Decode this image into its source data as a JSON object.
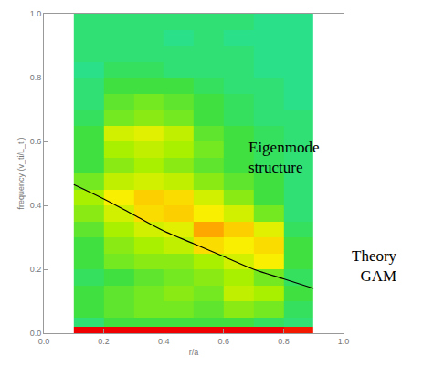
{
  "chart_data": {
    "type": "heatmap",
    "x_label": "r/a",
    "y_label": "frequency (v_ti/L_ti)",
    "xlim": [
      0,
      1
    ],
    "ylim": [
      0,
      1
    ],
    "xticks": [
      {
        "value": 0,
        "label": "0.0"
      },
      0.2,
      0.4,
      0.6,
      0.8,
      {
        "value": 1,
        "label": "1.0"
      }
    ],
    "yticks": [
      {
        "value": 0,
        "label": "0.0"
      },
      0.2,
      0.4,
      0.6,
      0.8,
      {
        "value": 1,
        "label": "1.0"
      }
    ],
    "x": [
      0.1,
      0.2,
      0.3,
      0.4,
      0.5,
      0.6,
      0.7,
      0.8,
      0.9
    ],
    "y": [
      0,
      0.02,
      0.05,
      0.1,
      0.15,
      0.2,
      0.25,
      0.3,
      0.35,
      0.4,
      0.45,
      0.5,
      0.55,
      0.6,
      0.65,
      0.7,
      0.75,
      0.8,
      0.85,
      0.9,
      0.95,
      1.0
    ],
    "z": [
      [
        1,
        1,
        1,
        1,
        1,
        1,
        1,
        0.98
      ],
      [
        0.5,
        0.55,
        0.55,
        0.55,
        0.55,
        0.55,
        0.52,
        0.5
      ],
      [
        0.55,
        0.58,
        0.6,
        0.6,
        0.58,
        0.62,
        0.6,
        0.52
      ],
      [
        0.55,
        0.58,
        0.6,
        0.62,
        0.6,
        0.68,
        0.65,
        0.55
      ],
      [
        0.52,
        0.55,
        0.58,
        0.6,
        0.62,
        0.65,
        0.6,
        0.52
      ],
      [
        0.55,
        0.6,
        0.62,
        0.62,
        0.65,
        0.7,
        0.75,
        0.55
      ],
      [
        0.55,
        0.62,
        0.65,
        0.68,
        0.78,
        0.75,
        0.78,
        0.55
      ],
      [
        0.58,
        0.65,
        0.7,
        0.72,
        0.86,
        0.8,
        0.72,
        0.52
      ],
      [
        0.62,
        0.7,
        0.78,
        0.8,
        0.75,
        0.7,
        0.6,
        0.5
      ],
      [
        0.65,
        0.75,
        0.8,
        0.78,
        0.7,
        0.62,
        0.55,
        0.5
      ],
      [
        0.6,
        0.68,
        0.7,
        0.68,
        0.62,
        0.58,
        0.55,
        0.5
      ],
      [
        0.55,
        0.62,
        0.65,
        0.62,
        0.58,
        0.55,
        0.52,
        0.5
      ],
      [
        0.55,
        0.65,
        0.68,
        0.65,
        0.6,
        0.55,
        0.52,
        0.5
      ],
      [
        0.55,
        0.7,
        0.72,
        0.68,
        0.58,
        0.55,
        0.52,
        0.5
      ],
      [
        0.52,
        0.6,
        0.62,
        0.6,
        0.55,
        0.52,
        0.5,
        0.5
      ],
      [
        0.5,
        0.58,
        0.6,
        0.58,
        0.55,
        0.52,
        0.5,
        0.48
      ],
      [
        0.5,
        0.55,
        0.55,
        0.55,
        0.52,
        0.5,
        0.5,
        0.48
      ],
      [
        0.48,
        0.52,
        0.52,
        0.5,
        0.5,
        0.5,
        0.48,
        0.48
      ],
      [
        0.5,
        0.5,
        0.5,
        0.5,
        0.5,
        0.5,
        0.48,
        0.48
      ],
      [
        0.5,
        0.5,
        0.5,
        0.48,
        0.5,
        0.48,
        0.48,
        0.48
      ],
      [
        0.5,
        0.5,
        0.5,
        0.5,
        0.5,
        0.5,
        0.48,
        0.48
      ]
    ],
    "zlim": [
      0,
      1
    ],
    "lines": [
      {
        "x": [
          0.1,
          0.2,
          0.3,
          0.4,
          0.5,
          0.6,
          0.7,
          0.8,
          0.9
        ],
        "y": [
          0.465,
          0.42,
          0.37,
          0.32,
          0.28,
          0.24,
          0.2,
          0.17,
          0.14
        ],
        "color": "#000000"
      }
    ],
    "annotations": [
      {
        "text": [
          "Eigenmode",
          "structure"
        ]
      },
      {
        "text": [
          "Theory",
          "GAM"
        ]
      }
    ]
  }
}
